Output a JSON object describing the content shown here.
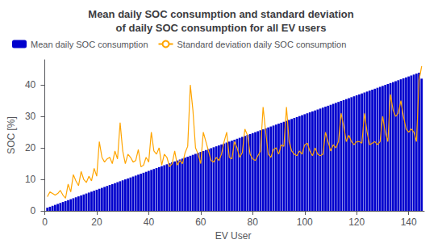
{
  "chart_data": {
    "type": "bar",
    "title": "Mean daily SOC consumption and standard deviation\nof daily SOC consumption for all EV users",
    "xlabel": "EV User",
    "ylabel": "SOC [%]",
    "x": [
      1,
      2,
      3,
      4,
      5,
      6,
      7,
      8,
      9,
      10,
      11,
      12,
      13,
      14,
      15,
      16,
      17,
      18,
      19,
      20,
      21,
      22,
      23,
      24,
      25,
      26,
      27,
      28,
      29,
      30,
      31,
      32,
      33,
      34,
      35,
      36,
      37,
      38,
      39,
      40,
      41,
      42,
      43,
      44,
      45,
      46,
      47,
      48,
      49,
      50,
      51,
      52,
      53,
      54,
      55,
      56,
      57,
      58,
      59,
      60,
      61,
      62,
      63,
      64,
      65,
      66,
      67,
      68,
      69,
      70,
      71,
      72,
      73,
      74,
      75,
      76,
      77,
      78,
      79,
      80,
      81,
      82,
      83,
      84,
      85,
      86,
      87,
      88,
      89,
      90,
      91,
      92,
      93,
      94,
      95,
      96,
      97,
      98,
      99,
      100,
      101,
      102,
      103,
      104,
      105,
      106,
      107,
      108,
      109,
      110,
      111,
      112,
      113,
      114,
      115,
      116,
      117,
      118,
      119,
      120,
      121,
      122,
      123,
      124,
      125,
      126,
      127,
      128,
      129,
      130,
      131,
      132,
      133,
      134,
      135,
      136,
      137,
      138,
      139,
      140,
      141,
      142,
      143,
      144,
      145
    ],
    "series": [
      {
        "name": "Mean daily SOC consumption",
        "type": "bar",
        "color": "#0000CD",
        "values": [
          1.0,
          1.3,
          1.6,
          1.9,
          2.2,
          2.5,
          2.8,
          3.1,
          3.4,
          3.7,
          4.0,
          4.3,
          4.6,
          4.9,
          5.2,
          5.5,
          5.8,
          6.1,
          6.4,
          6.7,
          7.0,
          7.3,
          7.6,
          7.9,
          8.2,
          8.5,
          8.8,
          9.1,
          9.4,
          9.7,
          10.0,
          10.3,
          10.6,
          10.9,
          11.2,
          11.5,
          11.8,
          12.1,
          12.4,
          12.7,
          13.0,
          13.3,
          13.6,
          13.9,
          14.2,
          14.5,
          14.8,
          15.1,
          15.4,
          15.7,
          16.0,
          16.3,
          16.6,
          16.9,
          17.2,
          17.5,
          17.8,
          18.1,
          18.4,
          18.7,
          19.0,
          19.3,
          19.6,
          19.9,
          20.2,
          20.5,
          20.8,
          21.1,
          21.4,
          21.7,
          22.0,
          22.3,
          22.6,
          22.9,
          23.2,
          23.5,
          23.8,
          24.1,
          24.4,
          24.7,
          25.0,
          25.3,
          25.6,
          25.9,
          26.2,
          26.5,
          26.8,
          27.1,
          27.4,
          27.7,
          28.0,
          28.3,
          28.6,
          28.9,
          29.2,
          29.5,
          29.8,
          30.1,
          30.4,
          30.7,
          31.0,
          31.3,
          31.6,
          31.9,
          32.2,
          32.5,
          32.8,
          33.1,
          33.4,
          33.7,
          34.0,
          34.3,
          34.6,
          34.9,
          35.2,
          35.5,
          35.8,
          36.1,
          36.4,
          36.7,
          37.0,
          37.3,
          37.6,
          37.9,
          38.2,
          38.5,
          38.8,
          39.1,
          39.4,
          39.7,
          40.0,
          40.3,
          40.6,
          40.9,
          41.2,
          41.5,
          41.8,
          42.1,
          42.4,
          42.7,
          43.0,
          43.3,
          43.6,
          43.9,
          42.0
        ]
      },
      {
        "name": "Standard deviation daily SOC consumption",
        "type": "line",
        "color": "#FFA500",
        "values": [
          4.5,
          6.0,
          5.5,
          5.0,
          5.5,
          6.5,
          5.0,
          4.0,
          8.5,
          6.0,
          11.5,
          9.5,
          8.0,
          12.5,
          10.0,
          9.0,
          11.0,
          9.5,
          13.5,
          11.0,
          22.0,
          17.0,
          15.5,
          16.5,
          17.0,
          15.0,
          19.0,
          16.5,
          28.0,
          19.0,
          15.0,
          18.0,
          17.0,
          15.5,
          16.0,
          19.5,
          14.0,
          14.5,
          17.0,
          15.5,
          25.0,
          19.0,
          18.0,
          20.0,
          14.5,
          18.0,
          17.0,
          14.0,
          15.0,
          19.0,
          14.5,
          16.0,
          15.0,
          18.5,
          20.5,
          40.0,
          32.0,
          20.0,
          18.0,
          15.0,
          25.0,
          22.0,
          19.0,
          16.0,
          15.5,
          17.0,
          16.0,
          18.0,
          22.0,
          25.0,
          17.0,
          16.5,
          22.0,
          20.0,
          17.0,
          18.5,
          26.0,
          24.0,
          18.0,
          16.5,
          16.0,
          17.5,
          19.0,
          33.0,
          25.0,
          18.0,
          17.0,
          19.5,
          20.0,
          18.0,
          21.0,
          20.5,
          33.0,
          22.0,
          19.0,
          18.0,
          17.5,
          19.0,
          18.0,
          21.0,
          21.5,
          19.0,
          17.5,
          20.0,
          18.0,
          17.5,
          18.0,
          25.0,
          22.0,
          19.0,
          21.0,
          20.0,
          22.0,
          31.0,
          27.0,
          22.0,
          24.0,
          22.0,
          21.0,
          22.0,
          22.0,
          21.5,
          31.0,
          25.0,
          21.0,
          21.5,
          22.0,
          21.0,
          22.0,
          30.0,
          25.0,
          22.0,
          37.0,
          32.0,
          30.0,
          31.0,
          35.0,
          30.0,
          26.0,
          25.0,
          26.0,
          25.0,
          22.0,
          41.5,
          46.0
        ]
      }
    ],
    "xlim": [
      -1,
      146
    ],
    "xticks": [
      0,
      20,
      40,
      60,
      80,
      100,
      120,
      140
    ],
    "ylim": [
      0,
      48
    ],
    "yticks": [
      0,
      10,
      20,
      30,
      40
    ],
    "grid": false,
    "legend": "upper left"
  }
}
